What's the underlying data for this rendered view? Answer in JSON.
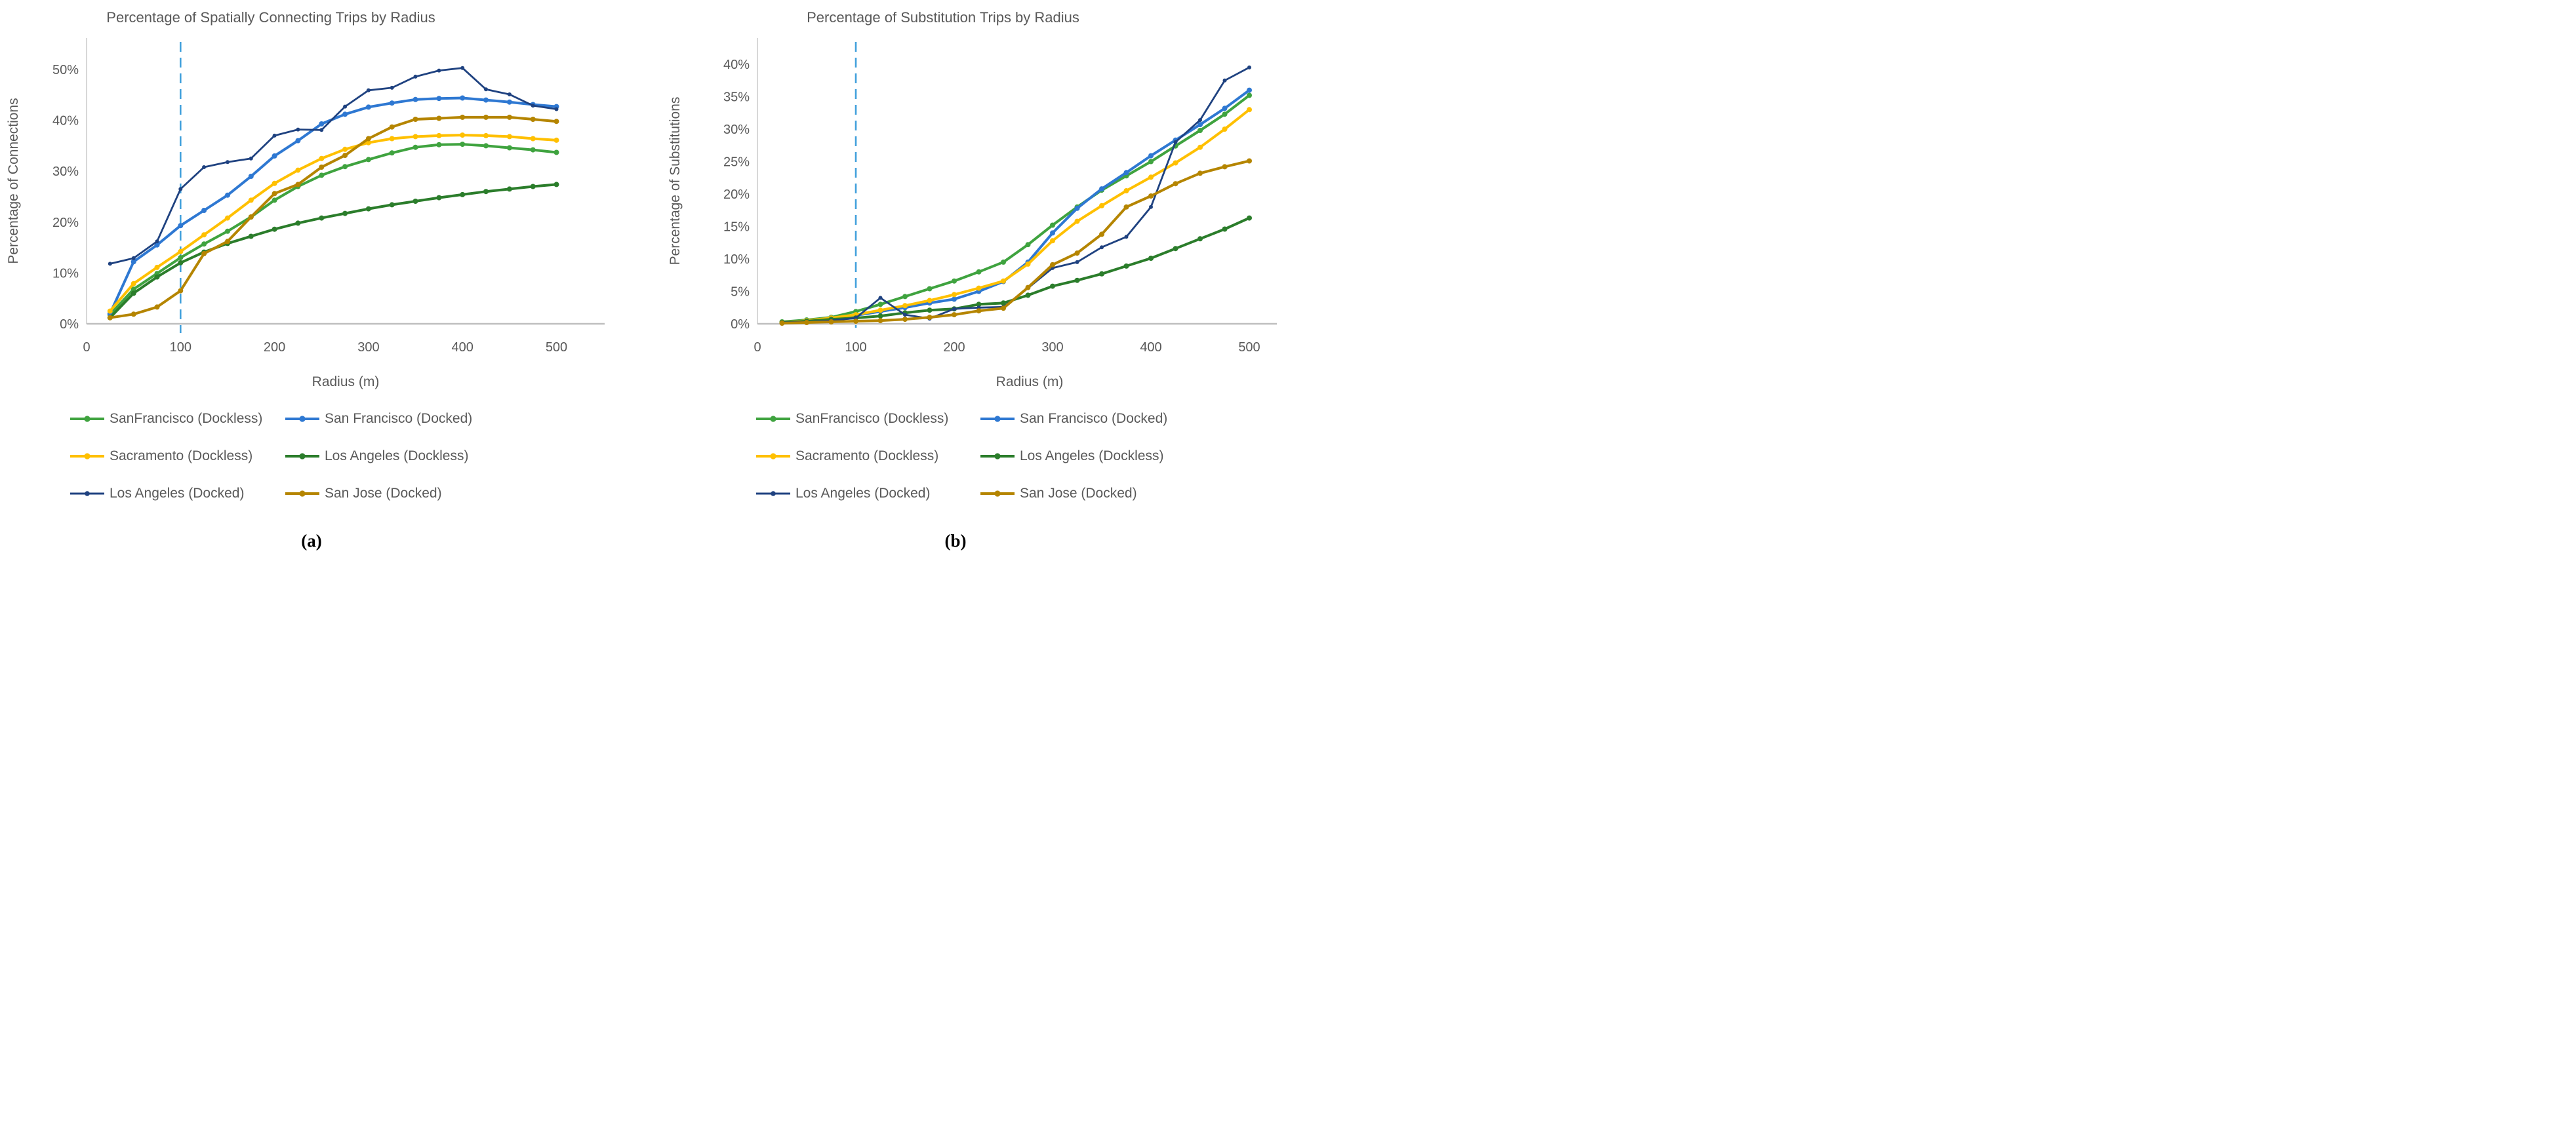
{
  "figure": {
    "panels": [
      {
        "id": "a",
        "caption": "(a)"
      },
      {
        "id": "b",
        "caption": "(b)"
      }
    ]
  },
  "chart_data": [
    {
      "type": "line",
      "title": "Percentage of Spatially Connecting Trips by Radius",
      "xlabel": "Radius (m)",
      "ylabel": "Percentage of Connections",
      "xlim": [
        0,
        550
      ],
      "ylim": [
        0,
        56
      ],
      "grid": false,
      "legend_position": "bottom",
      "x_tick_values": [
        0,
        100,
        200,
        300,
        400,
        500
      ],
      "x_tick_labels": [
        "0",
        "100",
        "200",
        "300",
        "400",
        "500"
      ],
      "y_tick_values": [
        0,
        10,
        20,
        30,
        40,
        50
      ],
      "y_tick_labels": [
        "0%",
        "10%",
        "20%",
        "30%",
        "40%",
        "50%"
      ],
      "vline": {
        "x": 100,
        "color": "#41A0DC",
        "style": "dashed"
      },
      "x": [
        25,
        50,
        75,
        100,
        125,
        150,
        175,
        200,
        225,
        250,
        275,
        300,
        325,
        350,
        375,
        400,
        425,
        450,
        475,
        500
      ],
      "series": [
        {
          "name": "SanFrancisco (Dockless)",
          "color": "#3FA33F",
          "line_width": 4,
          "marker_r": 4,
          "values": [
            1.8,
            6.8,
            9.9,
            13.0,
            15.7,
            18.2,
            21.0,
            24.3,
            27.0,
            29.2,
            30.9,
            32.3,
            33.6,
            34.7,
            35.2,
            35.3,
            35.0,
            34.6,
            34.2,
            33.7
          ]
        },
        {
          "name": "San Francisco (Docked)",
          "color": "#2E78D2",
          "line_width": 4,
          "marker_r": 4,
          "values": [
            2.0,
            12.2,
            15.5,
            19.3,
            22.3,
            25.3,
            29.0,
            33.0,
            36.0,
            39.3,
            41.2,
            42.6,
            43.4,
            44.1,
            44.3,
            44.4,
            44.0,
            43.6,
            43.1,
            42.7
          ]
        },
        {
          "name": "Sacramento (Dockless)",
          "color": "#FFC000",
          "line_width": 4,
          "marker_r": 4,
          "values": [
            2.5,
            7.9,
            11.1,
            14.2,
            17.5,
            20.8,
            24.3,
            27.6,
            30.2,
            32.5,
            34.3,
            35.6,
            36.4,
            36.8,
            37.0,
            37.1,
            37.0,
            36.8,
            36.4,
            36.1
          ]
        },
        {
          "name": "Los Angeles (Dockless)",
          "color": "#2B7D2B",
          "line_width": 4,
          "marker_r": 4,
          "values": [
            1.2,
            6.0,
            9.2,
            12.0,
            14.1,
            15.8,
            17.2,
            18.6,
            19.8,
            20.8,
            21.7,
            22.6,
            23.4,
            24.1,
            24.8,
            25.4,
            26.0,
            26.5,
            27.0,
            27.4
          ]
        },
        {
          "name": "Los Angeles (Docked)",
          "color": "#1F4280",
          "line_width": 2.8,
          "marker_r": 3,
          "values": [
            11.8,
            12.9,
            16.2,
            26.5,
            30.8,
            31.8,
            32.5,
            37.0,
            38.2,
            38.1,
            42.7,
            45.9,
            46.4,
            48.6,
            49.8,
            50.3,
            46.1,
            45.1,
            42.9,
            42.2
          ]
        },
        {
          "name": "San Jose (Docked)",
          "color": "#B58500",
          "line_width": 4,
          "marker_r": 4,
          "values": [
            1.2,
            1.9,
            3.3,
            6.5,
            13.8,
            16.2,
            21.0,
            25.6,
            27.4,
            30.8,
            33.1,
            36.4,
            38.7,
            40.2,
            40.4,
            40.6,
            40.6,
            40.6,
            40.2,
            39.8
          ]
        }
      ]
    },
    {
      "type": "line",
      "title": "Percentage of Substitution Trips by Radius",
      "xlabel": "Radius (m)",
      "ylabel": "Percentage of Substitutions",
      "xlim": [
        0,
        550
      ],
      "ylim": [
        0,
        44
      ],
      "grid": false,
      "legend_position": "bottom",
      "x_tick_values": [
        0,
        100,
        200,
        300,
        400,
        500
      ],
      "x_tick_labels": [
        "0",
        "100",
        "200",
        "300",
        "400",
        "500"
      ],
      "y_tick_values": [
        0,
        5,
        10,
        15,
        20,
        25,
        30,
        35,
        40
      ],
      "y_tick_labels": [
        "0%",
        "5%",
        "10%",
        "15%",
        "20%",
        "25%",
        "30%",
        "35%",
        "40%"
      ],
      "vline": {
        "x": 100,
        "color": "#41A0DC",
        "style": "dashed"
      },
      "x": [
        25,
        50,
        75,
        100,
        125,
        150,
        175,
        200,
        225,
        250,
        275,
        300,
        325,
        350,
        375,
        400,
        425,
        450,
        475,
        500
      ],
      "series": [
        {
          "name": "SanFrancisco (Dockless)",
          "color": "#3FA33F",
          "line_width": 4,
          "marker_r": 4,
          "values": [
            0.3,
            0.6,
            1.0,
            1.9,
            3.0,
            4.2,
            5.4,
            6.6,
            8.0,
            9.5,
            12.2,
            15.2,
            18.0,
            20.6,
            22.8,
            25.0,
            27.4,
            29.8,
            32.3,
            35.2
          ]
        },
        {
          "name": "San Francisco (Docked)",
          "color": "#2E78D2",
          "line_width": 4,
          "marker_r": 4,
          "values": [
            0.2,
            0.5,
            0.9,
            1.3,
            1.9,
            2.5,
            3.2,
            3.8,
            5.0,
            6.5,
            9.5,
            14.0,
            17.8,
            20.8,
            23.3,
            25.9,
            28.3,
            30.7,
            33.2,
            36.0
          ]
        },
        {
          "name": "Sacramento (Dockless)",
          "color": "#FFC000",
          "line_width": 4,
          "marker_r": 4,
          "values": [
            0.2,
            0.5,
            0.9,
            1.4,
            2.1,
            2.8,
            3.6,
            4.5,
            5.5,
            6.6,
            9.2,
            12.8,
            15.8,
            18.2,
            20.5,
            22.6,
            24.8,
            27.2,
            30.0,
            33.0
          ]
        },
        {
          "name": "Los Angeles (Dockless)",
          "color": "#2B7D2B",
          "line_width": 4,
          "marker_r": 4,
          "values": [
            0.2,
            0.4,
            0.7,
            0.9,
            1.2,
            1.7,
            2.1,
            2.3,
            3.0,
            3.2,
            4.4,
            5.8,
            6.7,
            7.7,
            8.9,
            10.1,
            11.6,
            13.1,
            14.6,
            16.3
          ]
        },
        {
          "name": "Los Angeles (Docked)",
          "color": "#1F4280",
          "line_width": 2.8,
          "marker_r": 3,
          "values": [
            0.2,
            0.3,
            0.5,
            0.9,
            4.0,
            1.4,
            0.8,
            2.3,
            2.5,
            2.6,
            5.5,
            8.6,
            9.5,
            11.8,
            13.4,
            18.0,
            28.0,
            31.4,
            37.5,
            39.5
          ]
        },
        {
          "name": "San Jose (Docked)",
          "color": "#B58500",
          "line_width": 4,
          "marker_r": 4,
          "values": [
            0.1,
            0.2,
            0.3,
            0.4,
            0.5,
            0.7,
            1.0,
            1.4,
            2.0,
            2.4,
            5.6,
            9.1,
            10.9,
            13.8,
            18.0,
            19.7,
            21.6,
            23.2,
            24.2,
            25.1
          ]
        }
      ]
    }
  ]
}
